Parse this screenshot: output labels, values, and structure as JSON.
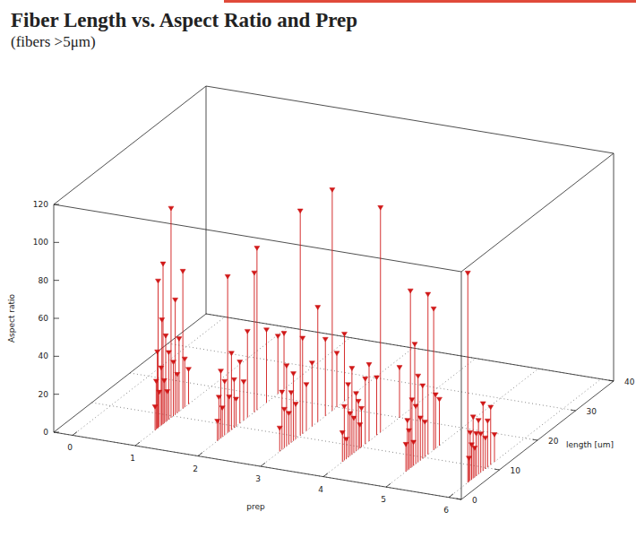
{
  "chart_data": {
    "type": "stem3d",
    "title": "Fiber Length vs. Aspect Ratio and Prep",
    "subtitle": "(fibers >5μm)",
    "x_label": "prep",
    "z_label": "length [um]",
    "y_label": "Aspect ratio",
    "x": [
      1,
      1,
      1,
      1,
      1,
      1,
      1,
      1,
      1,
      1,
      1,
      1,
      1,
      1,
      1,
      1,
      1,
      1,
      1,
      1,
      2,
      2,
      2,
      2,
      2,
      2,
      2,
      2,
      2,
      2,
      2,
      2,
      2,
      2,
      2,
      2,
      2,
      2,
      3,
      3,
      3,
      3,
      3,
      3,
      3,
      3,
      3,
      3,
      3,
      3,
      3,
      3,
      3,
      3,
      3,
      4,
      4,
      4,
      4,
      4,
      4,
      4,
      4,
      4,
      4,
      4,
      4,
      4,
      4,
      4,
      4,
      4,
      5,
      5,
      5,
      5,
      5,
      5,
      5,
      5,
      5,
      5,
      5,
      5,
      5,
      5,
      5,
      6,
      6,
      6,
      6,
      6,
      6,
      6,
      6,
      6,
      6,
      6,
      6,
      6,
      6
    ],
    "z": [
      5.2,
      5.5,
      5.8,
      6.0,
      6.3,
      6.8,
      7.0,
      7.3,
      7.6,
      8.0,
      8.4,
      8.8,
      9.4,
      10.0,
      10.5,
      11.0,
      11.5,
      12.5,
      13.0,
      14.0,
      5.1,
      5.5,
      6.0,
      6.4,
      7.0,
      7.8,
      8.2,
      8.8,
      9.5,
      10.0,
      11.0,
      12.0,
      13.0,
      14.8,
      15.5,
      18.0,
      21.0,
      22.6,
      5.0,
      5.6,
      6.2,
      6.8,
      7.4,
      8.0,
      8.6,
      9.2,
      10.4,
      11.0,
      12.0,
      13.5,
      15.0,
      17.0,
      18.8,
      20.0,
      22.0,
      5.0,
      5.5,
      6.0,
      6.5,
      7.0,
      7.5,
      8.0,
      8.6,
      9.2,
      10.0,
      11.0,
      12.0,
      14.0,
      15.0,
      20.0,
      24.0,
      9.6,
      5.2,
      5.6,
      6.0,
      6.4,
      6.8,
      7.2,
      7.8,
      8.4,
      9.0,
      9.6,
      10.2,
      11.0,
      12.5,
      13.0,
      14.0,
      5.0,
      5.3,
      5.6,
      6.0,
      6.4,
      6.8,
      7.2,
      7.8,
      8.4,
      9.0,
      9.6,
      10.2,
      11.0,
      12.0
    ],
    "values": [
      12,
      25,
      40,
      77,
      18,
      30,
      55,
      84,
      22,
      45,
      15,
      35,
      110,
      28,
      60,
      20,
      38,
      72,
      25,
      18,
      10,
      22,
      35,
      15,
      28,
      82,
      18,
      40,
      25,
      14,
      32,
      20,
      45,
      73,
      85,
      38,
      30,
      29,
      12,
      30,
      20,
      42,
      16,
      26,
      35,
      18,
      118,
      50,
      24,
      33,
      60,
      40,
      116,
      28,
      35,
      15,
      28,
      10,
      38,
      22,
      45,
      18,
      30,
      25,
      20,
      34,
      40,
      30,
      118,
      26,
      32,
      12,
      14,
      26,
      20,
      93,
      35,
      12,
      30,
      45,
      22,
      38,
      18,
      84,
      74,
      28,
      24,
      110,
      12,
      25,
      18,
      32,
      15,
      22,
      28,
      20,
      35,
      16,
      24,
      30,
      14
    ],
    "color": "#d01818",
    "marker": "triangle_down",
    "xlim": [
      -0.3,
      6.2
    ],
    "xticks": [
      0,
      1,
      2,
      3,
      4,
      5,
      6
    ],
    "zlim": [
      0,
      40
    ],
    "zticks": [
      0,
      10,
      20,
      30,
      40
    ],
    "ylim": [
      0,
      120
    ],
    "yticks": [
      0,
      20,
      40,
      60,
      80,
      100,
      120
    ],
    "grid": true
  }
}
